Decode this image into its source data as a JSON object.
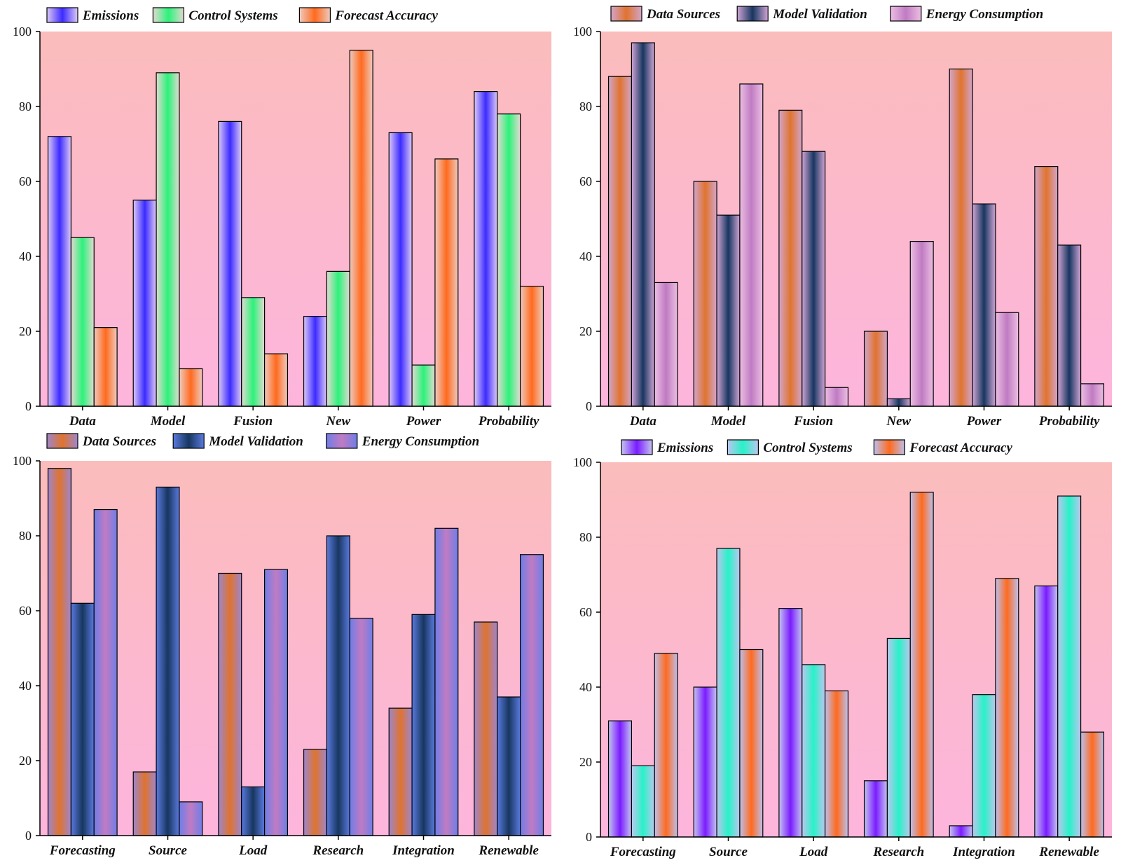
{
  "chart_data": [
    {
      "type": "bar",
      "panel": "top-left",
      "categories": [
        "Data",
        "Model",
        "Fusion",
        "New",
        "Power",
        "Probability"
      ],
      "series": [
        {
          "name": "Emissions",
          "values": [
            72,
            55,
            76,
            24,
            73,
            84
          ],
          "gradient": [
            "#3b2bff",
            "#dcc8f6"
          ]
        },
        {
          "name": "Control Systems",
          "values": [
            45,
            89,
            29,
            36,
            11,
            78
          ],
          "gradient": [
            "#2cf27a",
            "#e2dad0"
          ]
        },
        {
          "name": "Forecast Accuracy",
          "values": [
            21,
            10,
            14,
            95,
            66,
            32
          ],
          "gradient": [
            "#ff6a1e",
            "#efcabf"
          ]
        }
      ],
      "ylim": [
        0,
        100
      ],
      "yticks": [
        0,
        20,
        40,
        60,
        80,
        100
      ],
      "legend_position": "top",
      "background_gradient": [
        "#fbbcbc",
        "#fdb5dd"
      ]
    },
    {
      "type": "bar",
      "panel": "top-right",
      "categories": [
        "Data",
        "Model",
        "Fusion",
        "New",
        "Power",
        "Probability"
      ],
      "series": [
        {
          "name": "Data Sources",
          "values": [
            88,
            60,
            79,
            20,
            90,
            64
          ],
          "gradient": [
            "#e0732e",
            "#d2a5cb"
          ]
        },
        {
          "name": "Model Validation",
          "values": [
            97,
            51,
            68,
            2,
            54,
            43
          ],
          "gradient": [
            "#173660",
            "#cfa4d4"
          ]
        },
        {
          "name": "Energy Consumption",
          "values": [
            33,
            86,
            5,
            44,
            25,
            6
          ],
          "gradient": [
            "#c07bc3",
            "#ecbfe2"
          ]
        }
      ],
      "ylim": [
        0,
        100
      ],
      "yticks": [
        0,
        20,
        40,
        60,
        80,
        100
      ],
      "legend_position": "top",
      "background_gradient": [
        "#fbbcbc",
        "#fdb5dd"
      ]
    },
    {
      "type": "bar",
      "panel": "bottom-left",
      "categories": [
        "Forecasting",
        "Source",
        "Load",
        "Research",
        "Integration",
        "Renewable"
      ],
      "series": [
        {
          "name": "Data Sources",
          "values": [
            98,
            17,
            70,
            23,
            34,
            57
          ],
          "gradient": [
            "#e0732e",
            "#9d86cd"
          ]
        },
        {
          "name": "Model Validation",
          "values": [
            62,
            93,
            13,
            80,
            59,
            37
          ],
          "gradient": [
            "#173660",
            "#5a7adf"
          ]
        },
        {
          "name": "Energy Consumption",
          "values": [
            87,
            9,
            71,
            58,
            82,
            75
          ],
          "gradient": [
            "#c07bc3",
            "#6e7ee8"
          ]
        }
      ],
      "ylim": [
        0,
        100
      ],
      "yticks": [
        0,
        20,
        40,
        60,
        80,
        100
      ],
      "legend_position": "top",
      "background_gradient": [
        "#fbbcbc",
        "#fdb5dd"
      ]
    },
    {
      "type": "bar",
      "panel": "bottom-right",
      "categories": [
        "Forecasting",
        "Source",
        "Load",
        "Research",
        "Integration",
        "Renewable"
      ],
      "series": [
        {
          "name": "Emissions",
          "values": [
            31,
            40,
            61,
            15,
            3,
            67
          ],
          "gradient": [
            "#7a1cff",
            "#c4c4f0"
          ]
        },
        {
          "name": "Control Systems",
          "values": [
            19,
            77,
            46,
            53,
            38,
            91
          ],
          "gradient": [
            "#27f2c8",
            "#bcc6ee"
          ]
        },
        {
          "name": "Forecast Accuracy",
          "values": [
            49,
            50,
            39,
            92,
            69,
            28
          ],
          "gradient": [
            "#ff6a1e",
            "#bcc0ee"
          ]
        }
      ],
      "ylim": [
        0,
        100
      ],
      "yticks": [
        0,
        20,
        40,
        60,
        80,
        100
      ],
      "legend_position": "top",
      "background_gradient": [
        "#fbbcbc",
        "#fdb5dd"
      ]
    }
  ]
}
